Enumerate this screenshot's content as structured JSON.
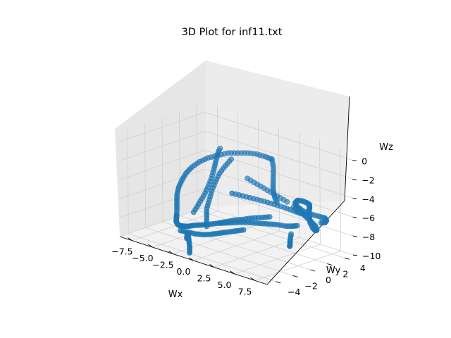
{
  "chart_data": {
    "type": "scatter",
    "title": "3D Plot for inf11.txt",
    "xlabel": "Wx",
    "ylabel": "Wy",
    "zlabel": "Wz",
    "xlim": [
      -9,
      9
    ],
    "ylim": [
      -5,
      5
    ],
    "zlim": [
      -10,
      1
    ],
    "xticks": [
      "−7.5",
      "−5.0",
      "−2.5",
      "0.0",
      "2.5",
      "5.0",
      "7.5"
    ],
    "yticks": [
      "−4",
      "−2",
      "0",
      "2",
      "4"
    ],
    "zticks": [
      "−10",
      "−8",
      "−6",
      "−4",
      "−2",
      "0"
    ],
    "grid": true,
    "marker_color": "#1f77b4",
    "points": [
      [
        -6.0,
        -1.2,
        -7.6
      ],
      [
        -6.2,
        -1.0,
        -6.9
      ],
      [
        -6.4,
        -0.8,
        -6.2
      ],
      [
        -6.5,
        -0.5,
        -5.5
      ],
      [
        -6.4,
        -0.2,
        -4.8
      ],
      [
        -6.2,
        0.1,
        -4.1
      ],
      [
        -5.9,
        0.5,
        -3.5
      ],
      [
        -5.5,
        1.0,
        -3.0
      ],
      [
        -5.0,
        1.5,
        -2.6
      ],
      [
        -4.3,
        2.0,
        -2.3
      ],
      [
        -3.6,
        2.5,
        -2.0
      ],
      [
        -2.8,
        2.9,
        -1.9
      ],
      [
        -2.0,
        3.3,
        -1.8
      ],
      [
        -1.2,
        3.6,
        -1.8
      ],
      [
        -0.4,
        3.8,
        -1.9
      ],
      [
        0.3,
        3.9,
        -2.0
      ],
      [
        -5.6,
        -1.6,
        -7.7
      ],
      [
        -5.2,
        -2.0,
        -7.8
      ],
      [
        -4.8,
        -2.4,
        -7.8
      ],
      [
        -4.4,
        -2.8,
        -7.8
      ],
      [
        -3.8,
        -3.2,
        -7.8
      ],
      [
        -3.2,
        -3.5,
        -7.7
      ],
      [
        -2.6,
        -3.7,
        -7.5
      ],
      [
        -1.9,
        -3.8,
        -7.3
      ],
      [
        -1.2,
        -3.8,
        -7.0
      ],
      [
        -0.5,
        -3.7,
        -6.8
      ],
      [
        0.2,
        -3.5,
        -6.6
      ],
      [
        0.9,
        -3.2,
        -6.4
      ],
      [
        1.5,
        -2.8,
        -6.2
      ],
      [
        2.1,
        -2.3,
        -6.0
      ],
      [
        2.7,
        -1.8,
        -5.9
      ],
      [
        3.2,
        -1.2,
        -5.8
      ],
      [
        3.7,
        -0.6,
        -5.8
      ],
      [
        4.1,
        0.0,
        -5.8
      ],
      [
        -5.0,
        -0.2,
        -7.8
      ],
      [
        -4.8,
        0.2,
        -7.0
      ],
      [
        -4.6,
        0.6,
        -6.2
      ],
      [
        -4.5,
        1.0,
        -5.4
      ],
      [
        -4.5,
        1.4,
        -4.6
      ],
      [
        -4.6,
        1.8,
        -3.8
      ],
      [
        -4.8,
        2.2,
        -3.2
      ],
      [
        -5.0,
        2.6,
        -2.6
      ],
      [
        -5.1,
        3.0,
        -2.1
      ],
      [
        -3.0,
        -0.6,
        -8.6
      ],
      [
        -3.2,
        -0.4,
        -7.8
      ],
      [
        -3.4,
        -0.2,
        -7.0
      ],
      [
        -3.5,
        0.2,
        -6.2
      ],
      [
        -3.6,
        0.6,
        -5.4
      ],
      [
        -3.6,
        1.0,
        -4.6
      ],
      [
        -3.5,
        1.4,
        -3.8
      ],
      [
        -3.3,
        1.9,
        -3.1
      ],
      [
        -3.1,
        2.4,
        -2.5
      ],
      [
        -1.8,
        -3.9,
        -8.0
      ],
      [
        -1.6,
        -4.0,
        -8.6
      ],
      [
        -1.4,
        -4.1,
        -9.2
      ],
      [
        -1.3,
        -4.2,
        -9.8
      ],
      [
        -2.2,
        -3.6,
        -8.3
      ],
      [
        -2.6,
        -3.3,
        -8.9
      ],
      [
        -1.0,
        -1.0,
        -7.6
      ],
      [
        -0.2,
        -0.8,
        -7.4
      ],
      [
        0.6,
        -0.6,
        -7.2
      ],
      [
        1.4,
        -0.4,
        -7.0
      ],
      [
        2.2,
        -0.2,
        -6.9
      ],
      [
        3.0,
        0.0,
        -6.8
      ],
      [
        3.8,
        0.2,
        -6.7
      ],
      [
        4.6,
        0.4,
        -6.6
      ],
      [
        5.4,
        0.6,
        -6.6
      ],
      [
        6.0,
        0.8,
        -6.5
      ],
      [
        6.4,
        1.0,
        -6.4
      ],
      [
        -0.5,
        0.0,
        -4.6
      ],
      [
        0.5,
        0.3,
        -4.7
      ],
      [
        1.5,
        0.6,
        -4.8
      ],
      [
        2.5,
        0.9,
        -4.9
      ],
      [
        3.5,
        1.1,
        -5.0
      ],
      [
        4.5,
        1.3,
        -5.1
      ],
      [
        5.5,
        1.4,
        -5.2
      ],
      [
        6.3,
        1.5,
        -5.3
      ],
      [
        6.0,
        1.0,
        -4.5
      ],
      [
        6.4,
        1.3,
        -5.0
      ],
      [
        6.8,
        1.6,
        -5.5
      ],
      [
        7.1,
        1.9,
        -6.0
      ],
      [
        7.3,
        2.2,
        -6.5
      ],
      [
        7.2,
        2.5,
        -7.0
      ],
      [
        6.9,
        2.8,
        -7.3
      ],
      [
        6.5,
        3.0,
        -7.5
      ],
      [
        6.1,
        3.1,
        -7.4
      ],
      [
        5.9,
        3.0,
        -6.9
      ],
      [
        6.0,
        2.8,
        -6.3
      ],
      [
        6.3,
        2.5,
        -5.6
      ],
      [
        6.7,
        2.1,
        -5.0
      ],
      [
        7.2,
        1.7,
        -4.5
      ],
      [
        7.6,
        1.3,
        -4.1
      ],
      [
        7.9,
        1.0,
        -3.8
      ],
      [
        8.1,
        0.8,
        -3.6
      ],
      [
        8.0,
        0.6,
        -3.4
      ],
      [
        7.6,
        0.5,
        -3.3
      ],
      [
        7.0,
        0.5,
        -3.4
      ],
      [
        6.6,
        0.6,
        -3.8
      ],
      [
        6.5,
        0.9,
        -4.3
      ],
      [
        6.8,
        1.3,
        -4.8
      ],
      [
        7.3,
        1.8,
        -5.2
      ],
      [
        7.8,
        2.2,
        -5.4
      ],
      [
        8.1,
        2.6,
        -5.6
      ],
      [
        8.0,
        2.9,
        -6.0
      ],
      [
        7.6,
        3.1,
        -6.4
      ],
      [
        7.0,
        3.2,
        -6.6
      ],
      [
        6.5,
        0.2,
        -7.0
      ],
      [
        6.8,
        -0.2,
        -7.4
      ],
      [
        7.2,
        -0.6,
        -7.6
      ],
      [
        7.6,
        -1.0,
        -7.6
      ],
      [
        7.9,
        -1.3,
        -7.4
      ],
      [
        4.5,
        2.8,
        -5.6
      ],
      [
        5.2,
        2.9,
        -6.0
      ],
      [
        5.8,
        3.0,
        -6.4
      ],
      [
        3.5,
        2.6,
        -5.2
      ],
      [
        2.5,
        2.4,
        -4.8
      ],
      [
        1.5,
        2.2,
        -4.4
      ],
      [
        0.5,
        2.0,
        -4.0
      ],
      [
        -0.5,
        1.8,
        -3.6
      ],
      [
        0.3,
        3.9,
        -2.0
      ],
      [
        0.8,
        3.6,
        -2.6
      ],
      [
        1.2,
        3.2,
        -3.2
      ],
      [
        1.6,
        2.8,
        -3.8
      ],
      [
        2.0,
        2.4,
        -4.3
      ],
      [
        2.6,
        2.0,
        -4.7
      ],
      [
        3.3,
        1.6,
        -5.0
      ],
      [
        -4.2,
        -2.5,
        -8.8
      ],
      [
        -3.6,
        -2.2,
        -8.9
      ],
      [
        -3.0,
        -1.9,
        -9.0
      ],
      [
        -2.4,
        -1.6,
        -9.0
      ],
      [
        -1.8,
        -1.3,
        -8.9
      ],
      [
        -1.2,
        -1.1,
        -8.7
      ],
      [
        -0.6,
        -0.9,
        -8.5
      ],
      [
        0.0,
        -0.7,
        -8.3
      ],
      [
        0.6,
        -0.5,
        -8.1
      ],
      [
        1.2,
        -0.3,
        -7.9
      ]
    ]
  }
}
